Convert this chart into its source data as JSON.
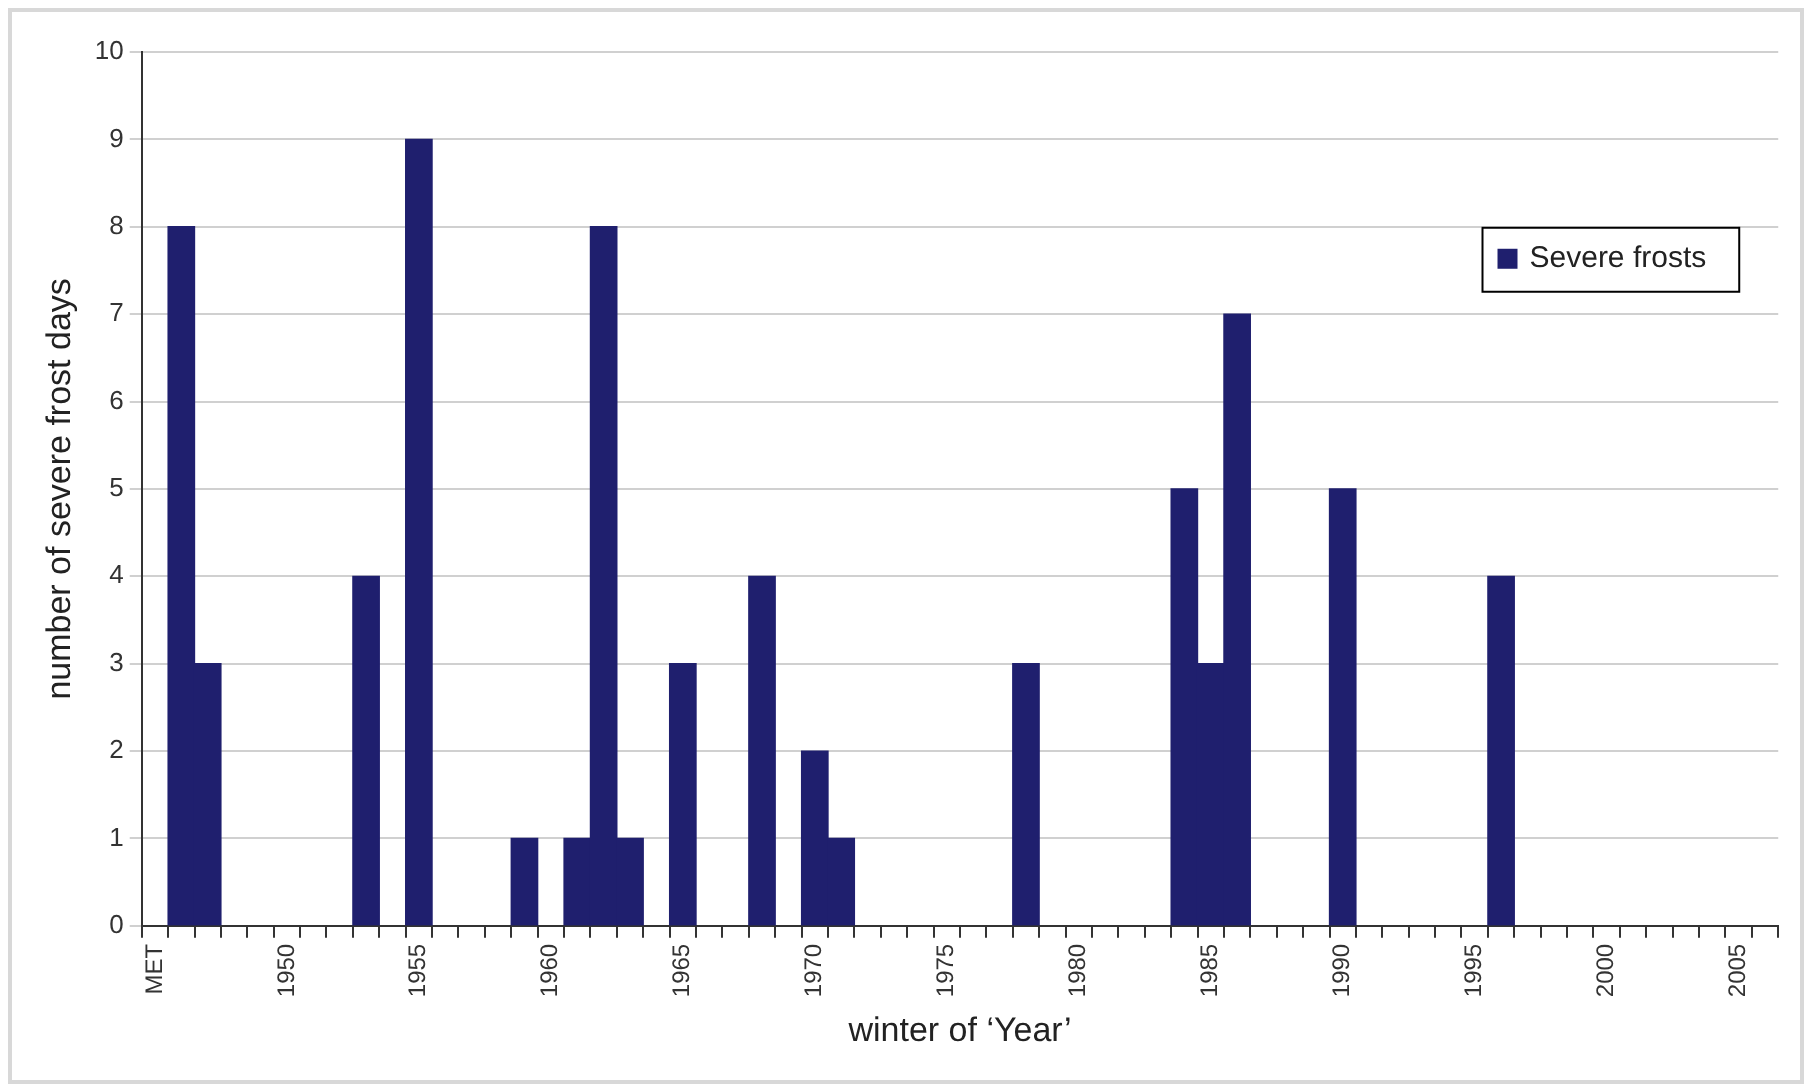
{
  "chart_data": {
    "type": "bar",
    "xlabel": "winter of ‘Year’",
    "ylabel": "number of severe frost days",
    "categories": [
      "MET",
      null,
      null,
      null,
      null,
      "1950",
      null,
      null,
      null,
      null,
      "1955",
      null,
      null,
      null,
      null,
      "1960",
      null,
      null,
      null,
      null,
      "1965",
      null,
      null,
      null,
      null,
      "1970",
      null,
      null,
      null,
      null,
      "1975",
      null,
      null,
      null,
      null,
      "1980",
      null,
      null,
      null,
      null,
      "1985",
      null,
      null,
      null,
      null,
      "1990",
      null,
      null,
      null,
      null,
      "1995",
      null,
      null,
      null,
      null,
      "2000",
      null,
      null,
      null,
      null,
      "2005",
      null
    ],
    "series": [
      {
        "name": "Severe frosts",
        "color": "#1f1f6e",
        "values": [
          null,
          8,
          3,
          null,
          null,
          null,
          null,
          null,
          4,
          null,
          9,
          null,
          null,
          null,
          1,
          null,
          1,
          8,
          1,
          null,
          3,
          null,
          null,
          4,
          null,
          2,
          1,
          null,
          null,
          null,
          null,
          null,
          null,
          3,
          null,
          null,
          null,
          null,
          null,
          5,
          3,
          7,
          null,
          null,
          null,
          5,
          null,
          null,
          null,
          null,
          null,
          4,
          null,
          null,
          null,
          null,
          null,
          null,
          null,
          null,
          null,
          null
        ]
      }
    ],
    "ylim": [
      0,
      10
    ],
    "yticks": [
      0,
      1,
      2,
      3,
      4,
      5,
      6,
      7,
      8,
      9,
      10
    ],
    "grid": "y",
    "legend": "top right"
  }
}
